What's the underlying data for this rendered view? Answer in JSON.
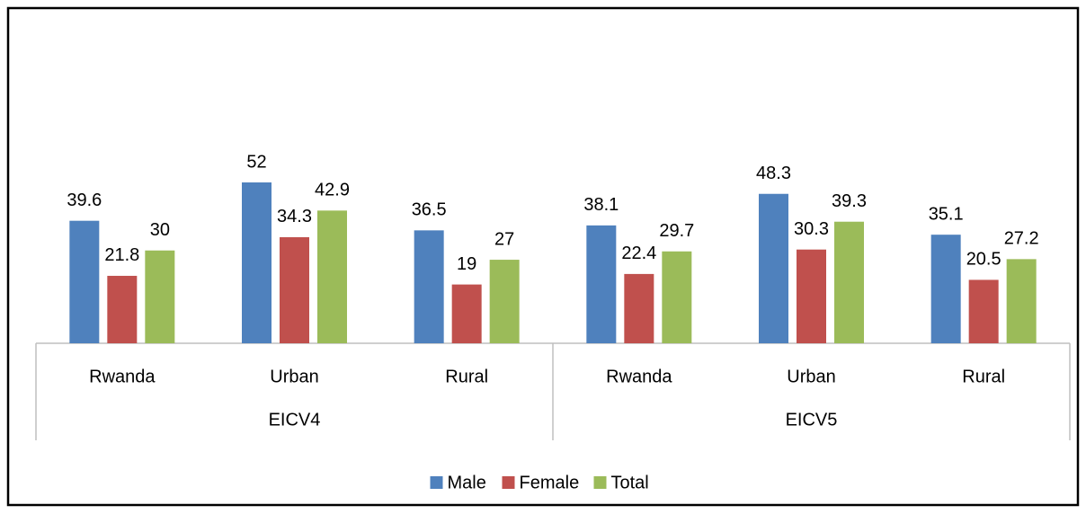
{
  "chart_data": {
    "type": "bar",
    "groups": [
      "EICV4",
      "EICV5"
    ],
    "categories": [
      "Rwanda",
      "Urban",
      "Rural",
      "Rwanda",
      "Urban",
      "Rural"
    ],
    "series": [
      {
        "name": "Male",
        "color": "#4f81bd",
        "values": [
          39.6,
          52,
          36.5,
          38.1,
          48.3,
          35.1
        ]
      },
      {
        "name": "Female",
        "color": "#c0504d",
        "values": [
          21.8,
          34.3,
          19,
          22.4,
          30.3,
          20.5
        ]
      },
      {
        "name": "Total",
        "color": "#9bbb59",
        "values": [
          30,
          42.9,
          27,
          29.7,
          39.3,
          27.2
        ]
      }
    ],
    "legend": "bottom"
  }
}
